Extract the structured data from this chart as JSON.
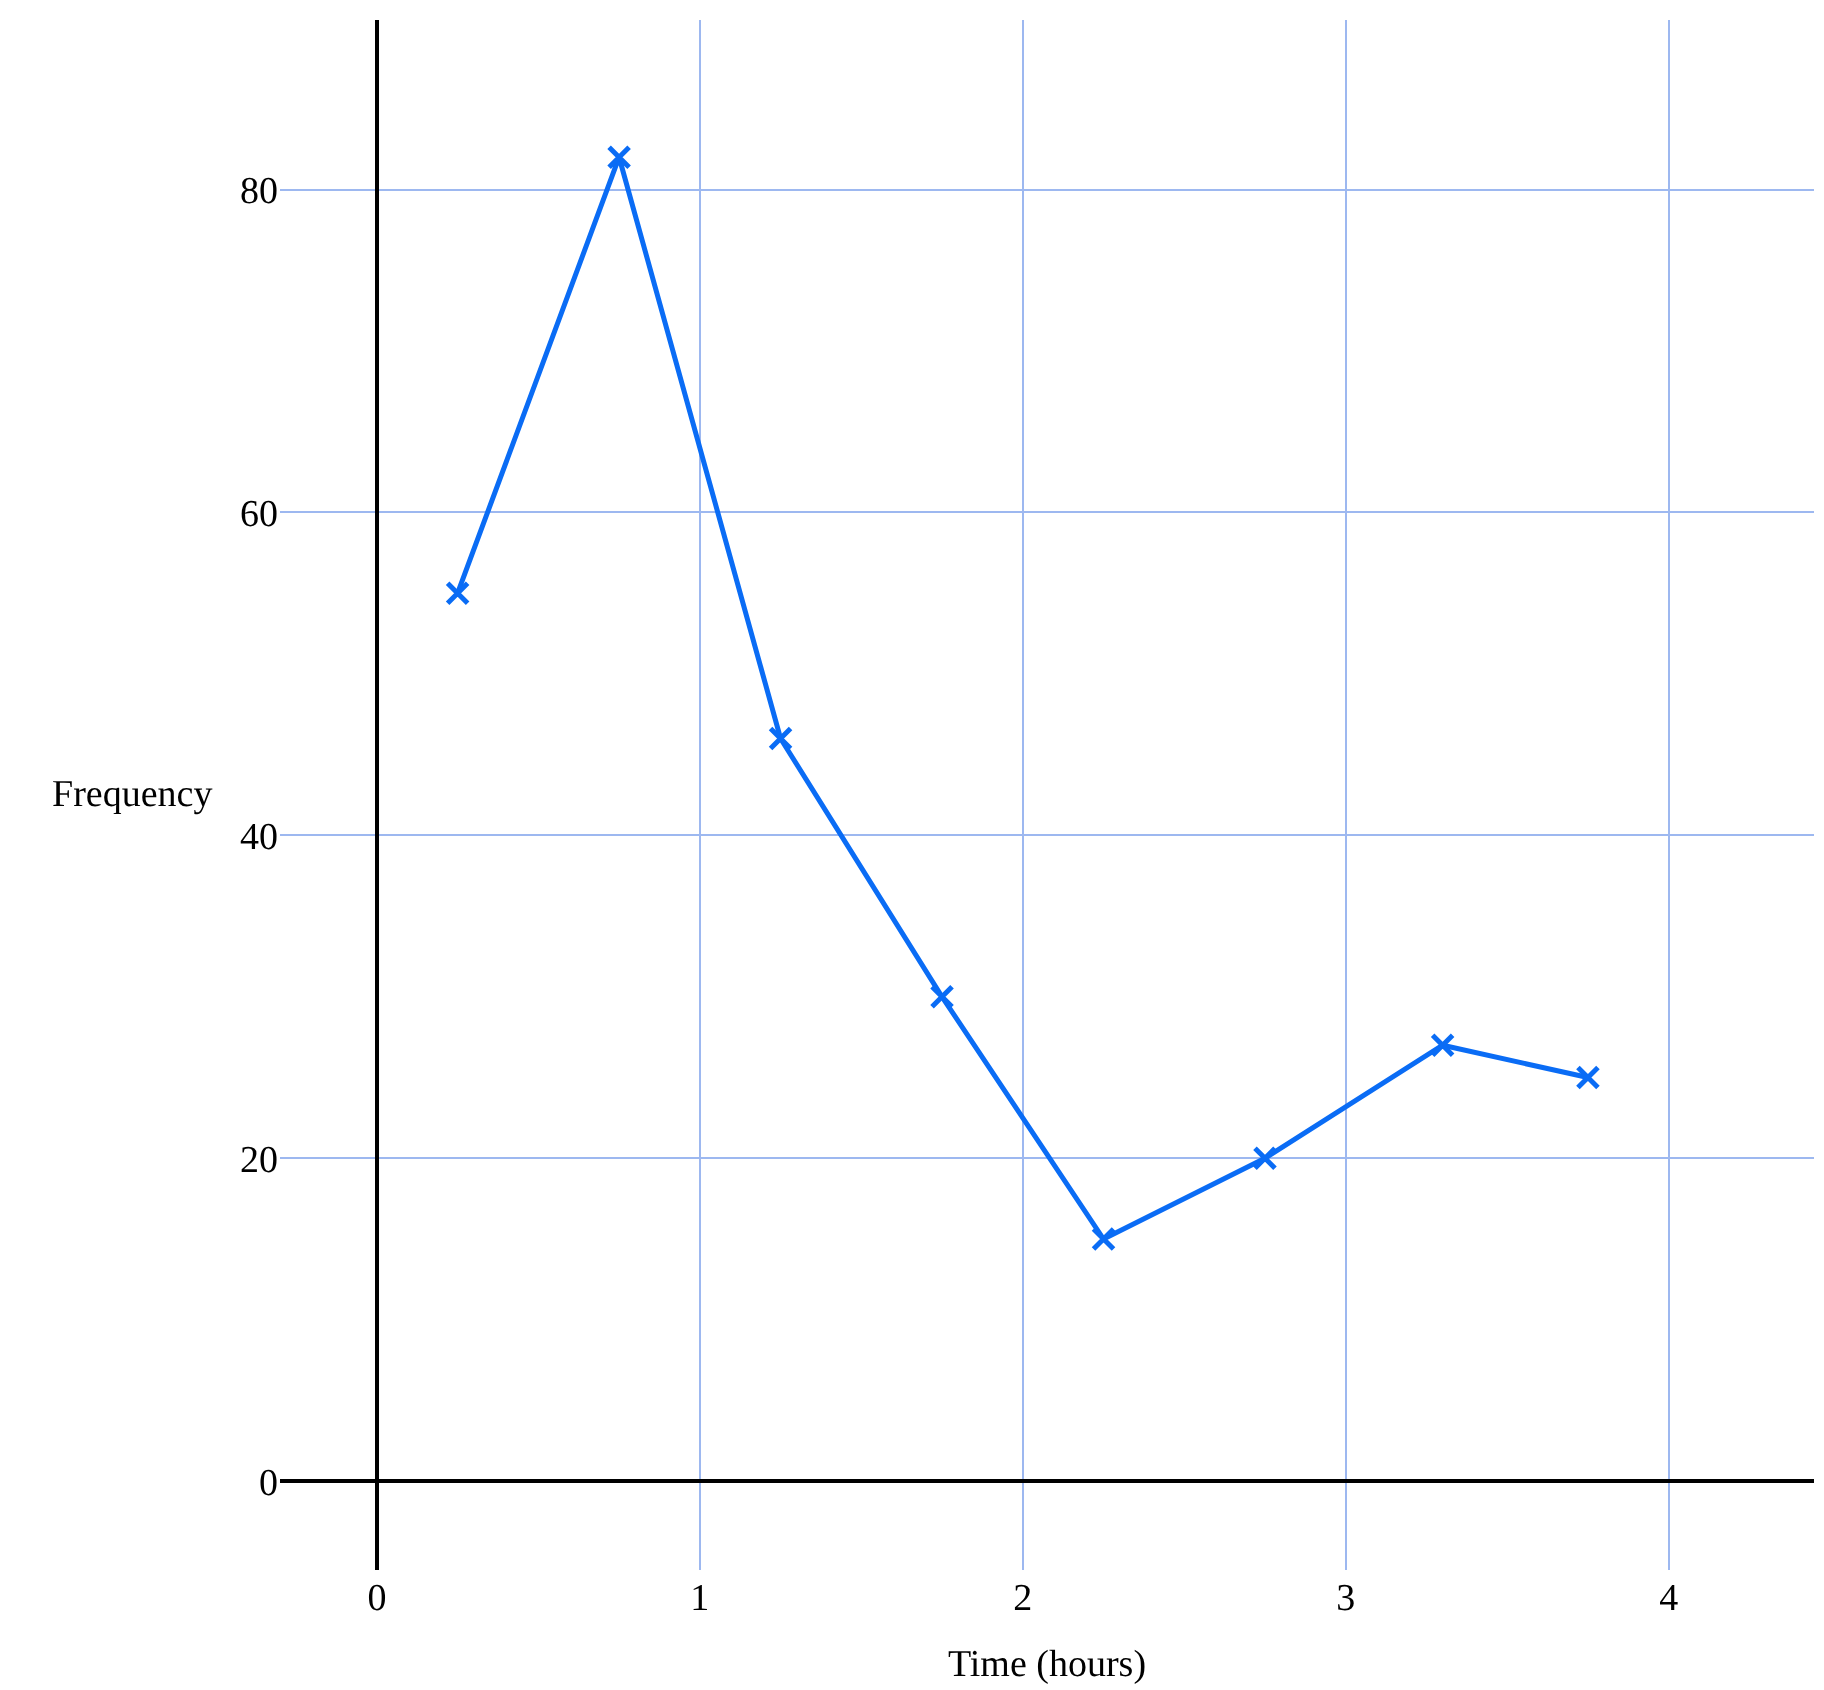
{
  "chart_data": {
    "type": "line",
    "xlabel": "Time (hours)",
    "ylabel": "Frequency",
    "x": [
      0.25,
      0.75,
      1.25,
      1.75,
      2.25,
      2.75,
      3.3,
      3.75
    ],
    "series": [
      {
        "color": "#0a6cf5",
        "values": [
          55,
          82,
          46,
          30,
          15,
          20,
          27,
          25
        ]
      }
    ],
    "xlim": [
      -0.3,
      4.45
    ],
    "ylim": [
      -5.5,
      90.5
    ],
    "xticks": [
      0,
      1,
      2,
      3,
      4
    ],
    "yticks": [
      0,
      20,
      40,
      60,
      80
    ],
    "grid": true,
    "marker": "cross",
    "line_style": "solid"
  }
}
